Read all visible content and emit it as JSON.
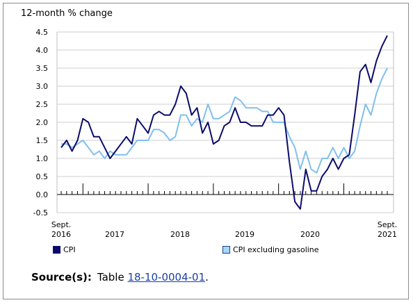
{
  "chart_data": {
    "type": "line",
    "ylabel": "12-month % change",
    "ylim": [
      -0.5,
      4.5
    ],
    "yticks": [
      "4.5",
      "4.0",
      "3.5",
      "3.0",
      "2.5",
      "2.0",
      "1.5",
      "1.0",
      "0.5",
      "0.0",
      "-0.5"
    ],
    "x_start": "Sept. 2016",
    "x_end": "Sept. 2021",
    "x_labels": [
      {
        "top": "Sept.",
        "bottom": "2016"
      },
      {
        "top": "",
        "bottom": "2017"
      },
      {
        "top": "",
        "bottom": "2018"
      },
      {
        "top": "",
        "bottom": "2019"
      },
      {
        "top": "",
        "bottom": "2020"
      },
      {
        "top": "Sept.",
        "bottom": "2021"
      }
    ],
    "grid": true,
    "series": [
      {
        "name": "CPI",
        "color": "#0b0b6b",
        "values": [
          1.3,
          1.5,
          1.2,
          1.5,
          2.1,
          2.0,
          1.6,
          1.6,
          1.3,
          1.0,
          1.2,
          1.4,
          1.6,
          1.4,
          2.1,
          1.9,
          1.7,
          2.2,
          2.3,
          2.2,
          2.2,
          2.5,
          3.0,
          2.8,
          2.2,
          2.4,
          1.7,
          2.0,
          1.4,
          1.5,
          1.9,
          2.0,
          2.4,
          2.0,
          2.0,
          1.9,
          1.9,
          1.9,
          2.2,
          2.2,
          2.4,
          2.2,
          0.9,
          -0.2,
          -0.4,
          0.7,
          0.1,
          0.1,
          0.5,
          0.7,
          1.0,
          0.7,
          1.0,
          1.1,
          2.2,
          3.4,
          3.6,
          3.1,
          3.7,
          4.1,
          4.4
        ]
      },
      {
        "name": "CPI excluding gasoline",
        "color": "#7fbfef",
        "values": [
          1.4,
          1.4,
          1.3,
          1.4,
          1.5,
          1.3,
          1.1,
          1.2,
          1.0,
          1.2,
          1.1,
          1.1,
          1.1,
          1.3,
          1.5,
          1.5,
          1.5,
          1.8,
          1.8,
          1.7,
          1.5,
          1.6,
          2.2,
          2.2,
          1.9,
          2.1,
          2.0,
          2.5,
          2.1,
          2.1,
          2.2,
          2.3,
          2.7,
          2.6,
          2.4,
          2.4,
          2.4,
          2.3,
          2.3,
          2.0,
          2.0,
          2.0,
          1.6,
          1.3,
          0.7,
          1.2,
          0.7,
          0.6,
          1.0,
          1.0,
          1.3,
          1.0,
          1.3,
          1.0,
          1.2,
          1.9,
          2.5,
          2.2,
          2.8,
          3.2,
          3.5
        ]
      }
    ]
  },
  "legend": {
    "cpi": "CPI",
    "cpi_ex": "CPI excluding gasoline"
  },
  "source": {
    "label": "Source(s):",
    "text": "Table",
    "link": "18-10-0004-01",
    "end": "."
  }
}
